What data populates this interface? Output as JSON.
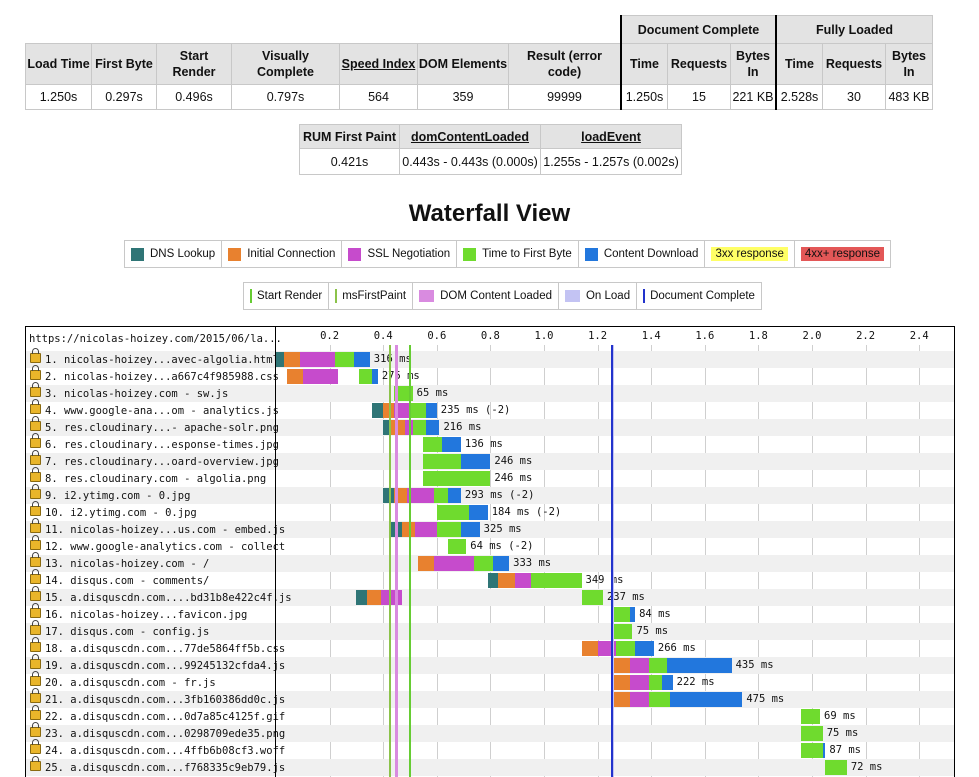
{
  "summary": {
    "headers": [
      "Load Time",
      "First Byte",
      "Start Render",
      "Visually Complete",
      "Speed Index",
      "DOM Elements",
      "Result (error code)"
    ],
    "values": [
      "1.250s",
      "0.297s",
      "0.496s",
      "0.797s",
      "564",
      "359",
      "99999"
    ],
    "doc_complete": {
      "title": "Document Complete",
      "headers": [
        "Time",
        "Requests",
        "Bytes In"
      ],
      "values": [
        "1.250s",
        "15",
        "221 KB"
      ]
    },
    "fully_loaded": {
      "title": "Fully Loaded",
      "headers": [
        "Time",
        "Requests",
        "Bytes In"
      ],
      "values": [
        "2.528s",
        "30",
        "483 KB"
      ]
    }
  },
  "rum": {
    "headers": [
      "RUM First Paint",
      "domContentLoaded",
      "loadEvent"
    ],
    "values": [
      "0.421s",
      "0.443s - 0.443s (0.000s)",
      "1.255s - 1.257s (0.002s)"
    ]
  },
  "waterfall_title": "Waterfall View",
  "legend1": [
    {
      "label": "DNS Lookup",
      "color": "#2f7576"
    },
    {
      "label": "Initial Connection",
      "color": "#e8812f"
    },
    {
      "label": "SSL Negotiation",
      "color": "#c64bcc"
    },
    {
      "label": "Time to First Byte",
      "color": "#6fdb2e"
    },
    {
      "label": "Content Download",
      "color": "#2277dd"
    },
    {
      "label": "3xx response",
      "color": "#ffff66"
    },
    {
      "label": "4xx+ response",
      "color": "#e35757"
    }
  ],
  "legend2": [
    {
      "label": "Start Render",
      "color": "#66cc33",
      "kind": "line"
    },
    {
      "label": "msFirstPaint",
      "color": "#8bc34a",
      "kind": "line"
    },
    {
      "label": "DOM Content Loaded",
      "color": "#d98be0",
      "kind": "box"
    },
    {
      "label": "On Load",
      "color": "#c3c3f3",
      "kind": "box"
    },
    {
      "label": "Document Complete",
      "color": "#2233cc",
      "kind": "line"
    }
  ],
  "waterfall": {
    "page_url": "https://nicolas-hoizey.com/2015/06/la...",
    "ticks": [
      "0.2",
      "0.4",
      "0.6",
      "0.8",
      "1.0",
      "1.2",
      "1.4",
      "1.6",
      "1.8",
      "2.0",
      "2.2",
      "2.4"
    ],
    "events": {
      "start_render": 0.496,
      "first_paint": 0.421,
      "dom_content_loaded": 0.443,
      "on_load": 1.255,
      "document_complete": 1.25
    },
    "requests": [
      {
        "label": "1. nicolas-hoizey...avec-algolia.html",
        "duration": "316 ms",
        "phases": [
          [
            "dns",
            0,
            0.03
          ],
          [
            "connect",
            0.03,
            0.09
          ],
          [
            "ssl",
            0.09,
            0.22
          ],
          [
            "ttfb",
            0.22,
            0.29
          ],
          [
            "download",
            0.29,
            0.35
          ]
        ]
      },
      {
        "label": "2. nicolas-hoizey...a667c4f985988.css",
        "duration": "275 ms",
        "phases": [
          [
            "connect",
            0.04,
            0.1
          ],
          [
            "ssl",
            0.1,
            0.23
          ],
          [
            "ttfb",
            0.31,
            0.36
          ],
          [
            "download",
            0.36,
            0.38
          ]
        ]
      },
      {
        "label": "3. nicolas-hoizey.com - sw.js",
        "duration": "65 ms",
        "phases": [
          [
            "ttfb",
            0.44,
            0.51
          ]
        ]
      },
      {
        "label": "4. www.google-ana...om - analytics.js",
        "duration": "235 ms (-2)",
        "phases": [
          [
            "dns",
            0.36,
            0.4
          ],
          [
            "connect",
            0.4,
            0.44
          ],
          [
            "ssl",
            0.44,
            0.5
          ],
          [
            "ttfb",
            0.5,
            0.56
          ],
          [
            "download",
            0.56,
            0.6
          ]
        ]
      },
      {
        "label": "5. res.cloudinary...- apache-solr.png",
        "duration": "216 ms",
        "phases": [
          [
            "dns",
            0.4,
            0.43
          ],
          [
            "connect",
            0.43,
            0.48
          ],
          [
            "ssl",
            0.48,
            0.51
          ],
          [
            "ttfb",
            0.51,
            0.56
          ],
          [
            "download",
            0.56,
            0.61
          ]
        ]
      },
      {
        "label": "6. res.cloudinary...esponse-times.jpg",
        "duration": "136 ms",
        "phases": [
          [
            "ttfb",
            0.55,
            0.62
          ],
          [
            "download",
            0.62,
            0.69
          ]
        ]
      },
      {
        "label": "7. res.cloudinary...oard-overview.jpg",
        "duration": "246 ms",
        "phases": [
          [
            "ttfb",
            0.55,
            0.69
          ],
          [
            "download",
            0.69,
            0.8
          ]
        ]
      },
      {
        "label": "8. res.cloudinary.com - algolia.png",
        "duration": "246 ms",
        "phases": [
          [
            "ttfb",
            0.55,
            0.8
          ]
        ]
      },
      {
        "label": "9. i2.ytimg.com - 0.jpg",
        "duration": "293 ms (-2)",
        "phases": [
          [
            "dns",
            0.4,
            0.44
          ],
          [
            "connect",
            0.44,
            0.49
          ],
          [
            "ssl",
            0.49,
            0.59
          ],
          [
            "ttfb",
            0.59,
            0.64
          ],
          [
            "download",
            0.64,
            0.69
          ]
        ]
      },
      {
        "label": "10. i2.ytimg.com - 0.jpg",
        "duration": "184 ms (-2)",
        "phases": [
          [
            "ttfb",
            0.6,
            0.72
          ],
          [
            "download",
            0.72,
            0.79
          ]
        ]
      },
      {
        "label": "11. nicolas-hoizey...us.com - embed.js",
        "duration": "325 ms",
        "phases": [
          [
            "dns",
            0.43,
            0.47
          ],
          [
            "connect",
            0.47,
            0.52
          ],
          [
            "ssl",
            0.52,
            0.6
          ],
          [
            "ttfb",
            0.6,
            0.69
          ],
          [
            "download",
            0.69,
            0.76
          ]
        ]
      },
      {
        "label": "12. www.google-analytics.com - collect",
        "duration": "64 ms (-2)",
        "phases": [
          [
            "ttfb",
            0.64,
            0.71
          ]
        ]
      },
      {
        "label": "13. nicolas-hoizey.com - /",
        "duration": "333 ms",
        "phases": [
          [
            "connect",
            0.53,
            0.59
          ],
          [
            "ssl",
            0.59,
            0.74
          ],
          [
            "ttfb",
            0.74,
            0.81
          ],
          [
            "download",
            0.81,
            0.87
          ]
        ]
      },
      {
        "label": "14. disqus.com - comments/",
        "duration": "349 ms",
        "phases": [
          [
            "dns",
            0.79,
            0.83
          ],
          [
            "connect",
            0.83,
            0.89
          ],
          [
            "ssl",
            0.89,
            0.95
          ],
          [
            "ttfb",
            0.95,
            1.14
          ]
        ]
      },
      {
        "label": "15. a.disquscdn.com....bd31b8e422c4f.js",
        "duration": "237 ms",
        "phases": [
          [
            "dns",
            0.3,
            0.34
          ],
          [
            "connect",
            0.34,
            0.39
          ],
          [
            "ssl",
            0.39,
            0.47
          ],
          [
            "ttfb",
            1.14,
            1.22
          ]
        ]
      },
      {
        "label": "16. nicolas-hoizey...favicon.jpg",
        "duration": "84 ms",
        "phases": [
          [
            "ttfb",
            1.26,
            1.32
          ],
          [
            "download",
            1.32,
            1.34
          ]
        ]
      },
      {
        "label": "17. disqus.com - config.js",
        "duration": "75 ms",
        "phases": [
          [
            "ttfb",
            1.26,
            1.33
          ]
        ]
      },
      {
        "label": "18. a.disquscdn.com...77de5864ff5b.css",
        "duration": "266 ms",
        "phases": [
          [
            "connect",
            1.14,
            1.2
          ],
          [
            "ssl",
            1.2,
            1.27
          ],
          [
            "ttfb",
            1.27,
            1.34
          ],
          [
            "download",
            1.34,
            1.41
          ]
        ]
      },
      {
        "label": "19. a.disquscdn.com...99245132cfda4.js",
        "duration": "435 ms",
        "phases": [
          [
            "connect",
            1.26,
            1.32
          ],
          [
            "ssl",
            1.32,
            1.39
          ],
          [
            "ttfb",
            1.39,
            1.46
          ],
          [
            "download",
            1.46,
            1.7
          ]
        ]
      },
      {
        "label": "20. a.disquscdn.com - fr.js",
        "duration": "222 ms",
        "phases": [
          [
            "connect",
            1.26,
            1.32
          ],
          [
            "ssl",
            1.32,
            1.39
          ],
          [
            "ttfb",
            1.39,
            1.44
          ],
          [
            "download",
            1.44,
            1.48
          ]
        ]
      },
      {
        "label": "21. a.disquscdn.com...3fb160386dd0c.js",
        "duration": "475 ms",
        "phases": [
          [
            "connect",
            1.26,
            1.32
          ],
          [
            "ssl",
            1.32,
            1.39
          ],
          [
            "ttfb",
            1.39,
            1.47
          ],
          [
            "download",
            1.47,
            1.74
          ]
        ]
      },
      {
        "label": "22. a.disquscdn.com...0d7a85c4125f.gif",
        "duration": "69 ms",
        "phases": [
          [
            "ttfb",
            1.96,
            2.03
          ]
        ]
      },
      {
        "label": "23. a.disquscdn.com...0298709ede35.png",
        "duration": "75 ms",
        "phases": [
          [
            "ttfb",
            1.96,
            2.04
          ]
        ]
      },
      {
        "label": "24. a.disquscdn.com...4ffb6b08cf3.woff",
        "duration": "87 ms",
        "phases": [
          [
            "ttfb",
            1.96,
            2.04
          ],
          [
            "download",
            2.04,
            2.05
          ]
        ]
      },
      {
        "label": "25. a.disquscdn.com...f768335c9eb79.js",
        "duration": "72 ms",
        "phases": [
          [
            "ttfb",
            2.05,
            2.13
          ]
        ]
      }
    ]
  }
}
